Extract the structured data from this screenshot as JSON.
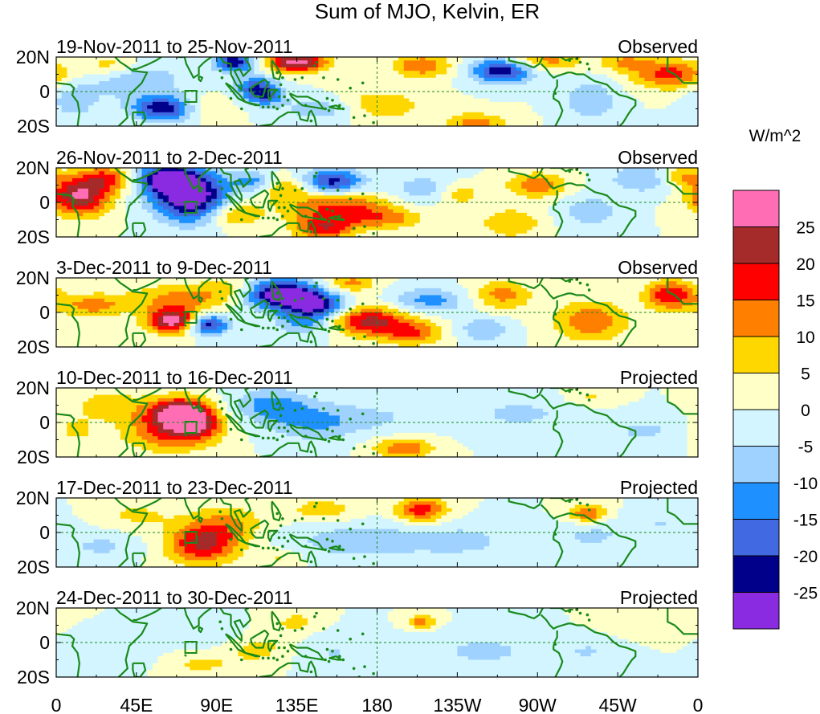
{
  "chart_data": {
    "type": "heatmap",
    "title": "Sum of MJO, Kelvin, ER",
    "colorbar": {
      "title": "W/m^2",
      "tick_labels": [
        "25",
        "20",
        "15",
        "10",
        "5",
        "0",
        "-5",
        "-10",
        "-15",
        "-20",
        "-25"
      ],
      "levels": [
        {
          "range": "> 25",
          "color": "#ff6eb4"
        },
        {
          "range": "20 to 25",
          "color": "#a52a2a"
        },
        {
          "range": "15 to 20",
          "color": "#ff0000"
        },
        {
          "range": "10 to 15",
          "color": "#ff7f00"
        },
        {
          "range": "5 to 10",
          "color": "#ffd700"
        },
        {
          "range": "0 to 5",
          "color": "#ffffc8"
        },
        {
          "range": "-5 to 0",
          "color": "#d2f5ff"
        },
        {
          "range": "-10 to -5",
          "color": "#a0d2ff"
        },
        {
          "range": "-15 to -10",
          "color": "#1e90ff"
        },
        {
          "range": "-20 to -15",
          "color": "#4169e1"
        },
        {
          "range": "-25 to -20",
          "color": "#00008b"
        },
        {
          "range": "< -25",
          "color": "#8a2be2"
        }
      ]
    },
    "x_tick_labels": [
      "0",
      "45E",
      "90E",
      "135E",
      "180",
      "135W",
      "90W",
      "45W",
      "0"
    ],
    "x_range_deg": [
      0,
      360
    ],
    "y_tick_labels": [
      "20N",
      "0",
      "20S"
    ],
    "y_range_deg": [
      -20,
      20
    ],
    "panels": [
      {
        "dates": "19-Nov-2011 to 25-Nov-2011",
        "status": "Observed",
        "blobs": [
          [
            135,
            17,
            12,
            4,
            28
          ],
          [
            100,
            17,
            8,
            4,
            -24
          ],
          [
            60,
            -10,
            12,
            5,
            -24
          ],
          [
            45,
            6,
            18,
            7,
            -10
          ],
          [
            112,
            2,
            8,
            5,
            -18
          ],
          [
            118,
            -3,
            7,
            4,
            -12
          ],
          [
            205,
            15,
            12,
            5,
            14
          ],
          [
            250,
            12,
            12,
            5,
            -24
          ],
          [
            300,
            -5,
            10,
            8,
            -10
          ],
          [
            345,
            10,
            15,
            6,
            17
          ],
          [
            320,
            17,
            10,
            4,
            10
          ],
          [
            10,
            -5,
            10,
            8,
            -8
          ],
          [
            180,
            -8,
            18,
            6,
            10
          ],
          [
            150,
            -10,
            15,
            5,
            -10
          ],
          [
            235,
            -18,
            12,
            4,
            12
          ],
          [
            30,
            15,
            10,
            5,
            8
          ],
          [
            85,
            -10,
            10,
            5,
            6
          ],
          [
            275,
            18,
            15,
            4,
            12
          ]
        ]
      },
      {
        "dates": "26-Nov-2011 to 2-Dec-2011",
        "status": "Observed",
        "blobs": [
          [
            75,
            4,
            14,
            10,
            -33
          ],
          [
            60,
            14,
            12,
            6,
            -22
          ],
          [
            13,
            4,
            12,
            8,
            26
          ],
          [
            30,
            14,
            10,
            5,
            15
          ],
          [
            100,
            -7,
            10,
            5,
            12
          ],
          [
            160,
            -3,
            22,
            6,
            16
          ],
          [
            150,
            -15,
            12,
            5,
            18
          ],
          [
            155,
            12,
            12,
            5,
            -22
          ],
          [
            210,
            7,
            15,
            6,
            -10
          ],
          [
            225,
            5,
            10,
            5,
            12
          ],
          [
            270,
            10,
            12,
            5,
            14
          ],
          [
            255,
            -12,
            12,
            6,
            10
          ],
          [
            330,
            14,
            14,
            6,
            -10
          ],
          [
            350,
            15,
            8,
            4,
            12
          ],
          [
            300,
            -5,
            12,
            7,
            -8
          ],
          [
            130,
            8,
            10,
            5,
            10
          ],
          [
            110,
            12,
            8,
            4,
            -12
          ],
          [
            185,
            -10,
            15,
            4,
            10
          ]
        ]
      },
      {
        "dates": "3-Dec-2011 to 9-Dec-2011",
        "status": "Observed",
        "blobs": [
          [
            125,
            11,
            15,
            6,
            -30
          ],
          [
            145,
            5,
            12,
            5,
            -22
          ],
          [
            140,
            -5,
            12,
            6,
            -12
          ],
          [
            65,
            -5,
            10,
            5,
            28
          ],
          [
            85,
            -7,
            8,
            4,
            -24
          ],
          [
            70,
            8,
            20,
            6,
            12
          ],
          [
            20,
            4,
            14,
            5,
            12
          ],
          [
            175,
            -5,
            15,
            6,
            22
          ],
          [
            200,
            -12,
            12,
            5,
            14
          ],
          [
            210,
            7,
            15,
            5,
            -12
          ],
          [
            240,
            -10,
            10,
            5,
            -10
          ],
          [
            250,
            10,
            12,
            6,
            12
          ],
          [
            300,
            -5,
            15,
            8,
            14
          ],
          [
            345,
            10,
            10,
            6,
            20
          ],
          [
            100,
            14,
            12,
            5,
            8
          ],
          [
            165,
            17,
            10,
            4,
            12
          ]
        ]
      },
      {
        "dates": "10-Dec-2011 to 16-Dec-2011",
        "status": "Projected",
        "blobs": [
          [
            70,
            6,
            12,
            6,
            28
          ],
          [
            65,
            -5,
            18,
            8,
            18
          ],
          [
            80,
            -2,
            8,
            5,
            12
          ],
          [
            120,
            10,
            15,
            7,
            -12
          ],
          [
            145,
            0,
            18,
            8,
            -10
          ],
          [
            30,
            10,
            15,
            6,
            8
          ],
          [
            195,
            -15,
            12,
            4,
            14
          ],
          [
            260,
            5,
            25,
            8,
            -6
          ],
          [
            180,
            3,
            20,
            6,
            -5
          ],
          [
            330,
            -5,
            15,
            6,
            -6
          ],
          [
            10,
            -5,
            10,
            6,
            6
          ],
          [
            300,
            15,
            10,
            4,
            6
          ]
        ]
      },
      {
        "dates": "17-Dec-2011 to 23-Dec-2011",
        "status": "Projected",
        "blobs": [
          [
            82,
            -7,
            14,
            8,
            20
          ],
          [
            95,
            5,
            15,
            8,
            10
          ],
          [
            205,
            13,
            10,
            5,
            18
          ],
          [
            298,
            11,
            8,
            4,
            15
          ],
          [
            150,
            13,
            15,
            5,
            8
          ],
          [
            170,
            -5,
            30,
            8,
            -8
          ],
          [
            230,
            -5,
            20,
            7,
            -6
          ],
          [
            300,
            -2,
            15,
            7,
            -6
          ],
          [
            25,
            -8,
            15,
            6,
            -6
          ],
          [
            125,
            -15,
            10,
            4,
            6
          ],
          [
            340,
            5,
            15,
            6,
            -5
          ],
          [
            45,
            10,
            15,
            6,
            6
          ]
        ]
      },
      {
        "dates": "24-Dec-2011 to 30-Dec-2011",
        "status": "Projected",
        "blobs": [
          [
            115,
            -3,
            18,
            8,
            8
          ],
          [
            90,
            5,
            15,
            6,
            -6
          ],
          [
            205,
            12,
            6,
            3,
            12
          ],
          [
            80,
            -13,
            12,
            4,
            6
          ],
          [
            150,
            -5,
            20,
            8,
            -6
          ],
          [
            240,
            -5,
            25,
            8,
            -6
          ],
          [
            300,
            -5,
            15,
            6,
            -5
          ],
          [
            30,
            -5,
            15,
            6,
            -5
          ],
          [
            135,
            12,
            10,
            5,
            6
          ],
          [
            330,
            10,
            15,
            6,
            5
          ]
        ]
      }
    ]
  }
}
